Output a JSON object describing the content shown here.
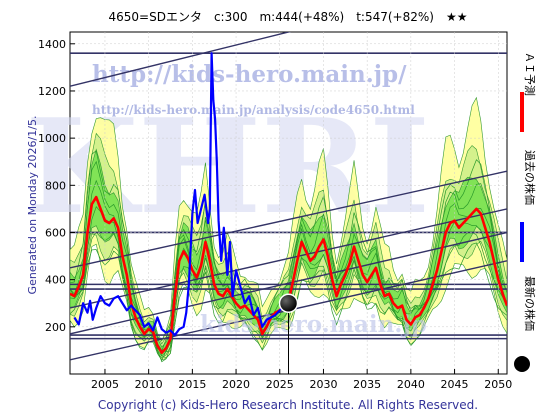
{
  "header": {
    "title": "4650=SDエンタ　c:300　m:444(+48%)　t:547(+82%)　★★"
  },
  "side_text": "Generated on Monday 2026/1/5.",
  "footer": "Copyright (c) Kids-Hero Research Institute. All Rights Reserved.",
  "watermarks": {
    "url_top": "http://kids-hero.main.jp/",
    "url_analysis": "http://kids-hero.main.jp/analysis/code4650.html",
    "big": "KHRI",
    "mid": "kids-hero.main.jp"
  },
  "legend": [
    {
      "label": "ＡＩ予測",
      "color": "#ff0000"
    },
    {
      "label": "過去の株価",
      "color": "#0000ff"
    },
    {
      "label": "最新の株価",
      "color": "#000000"
    }
  ],
  "colors": {
    "prediction": "#ff0000",
    "price": "#0000ff",
    "band_light": "#ffff99",
    "band_green": "#66dd44",
    "channel": "#333366"
  },
  "chart_data": {
    "type": "line",
    "xlim": [
      2001.0,
      2051.0
    ],
    "ylim": [
      0,
      1450
    ],
    "x_ticks": [
      2005,
      2010,
      2015,
      2020,
      2025,
      2030,
      2035,
      2040,
      2045,
      2050
    ],
    "y_ticks": [
      200,
      400,
      600,
      800,
      1000,
      1200,
      1400
    ],
    "horizontal_lines": [
      1360,
      600,
      380,
      360,
      165,
      150
    ],
    "channel_lines": [
      {
        "x": [
          2001,
          2051
        ],
        "y": [
          1220,
          1680
        ]
      },
      {
        "x": [
          2001,
          2051
        ],
        "y": [
          450,
          860
        ]
      },
      {
        "x": [
          2001,
          2051
        ],
        "y": [
          280,
          700
        ]
      },
      {
        "x": [
          2001,
          2051
        ],
        "y": [
          170,
          600
        ]
      },
      {
        "x": [
          2001,
          2051
        ],
        "y": [
          60,
          480
        ]
      }
    ],
    "latest": {
      "x": 2026.0,
      "y": 300
    },
    "series": [
      {
        "name": "過去の株価",
        "x": [
          2001.5,
          2002.0,
          2002.5,
          2003.0,
          2003.3,
          2003.6,
          2004.0,
          2004.5,
          2005.0,
          2005.5,
          2006.0,
          2006.5,
          2007.0,
          2007.5,
          2008.0,
          2008.5,
          2009.0,
          2009.5,
          2010.0,
          2010.5,
          2011.0,
          2011.5,
          2012.0,
          2012.5,
          2013.0,
          2013.5,
          2014.0,
          2014.3,
          2014.6,
          2015.0,
          2015.3,
          2015.6,
          2016.0,
          2016.4,
          2016.8,
          2017.0,
          2017.2,
          2017.4,
          2017.6,
          2017.8,
          2018.0,
          2018.3,
          2018.6,
          2019.0,
          2019.3,
          2019.6,
          2020.0,
          2020.5,
          2021.0,
          2021.5,
          2022.0,
          2022.5,
          2023.0,
          2023.5,
          2024.0,
          2024.5,
          2025.0,
          2025.5,
          2026.0
        ],
        "y": [
          240,
          210,
          300,
          260,
          310,
          230,
          280,
          330,
          300,
          290,
          320,
          330,
          300,
          270,
          290,
          270,
          250,
          200,
          215,
          185,
          240,
          190,
          175,
          185,
          165,
          190,
          200,
          260,
          380,
          680,
          780,
          640,
          700,
          760,
          640,
          700,
          1360,
          1160,
          1080,
          900,
          650,
          480,
          620,
          420,
          560,
          330,
          440,
          370,
          300,
          330,
          250,
          280,
          200,
          230,
          240,
          250,
          270,
          285,
          300
        ]
      },
      {
        "name": "ＡＩ予測",
        "x": [
          2001.0,
          2001.5,
          2002.0,
          2002.5,
          2003.0,
          2003.5,
          2004.0,
          2004.5,
          2005.0,
          2005.5,
          2006.0,
          2006.5,
          2007.0,
          2007.5,
          2008.0,
          2008.5,
          2009.0,
          2009.5,
          2010.0,
          2010.5,
          2011.0,
          2011.5,
          2012.0,
          2012.5,
          2013.0,
          2013.5,
          2014.0,
          2014.5,
          2015.0,
          2015.5,
          2016.0,
          2016.5,
          2017.0,
          2017.5,
          2018.0,
          2018.5,
          2019.0,
          2019.5,
          2020.0,
          2020.5,
          2021.0,
          2021.5,
          2022.0,
          2022.5,
          2023.0,
          2023.5,
          2024.0,
          2024.5,
          2025.0,
          2025.5,
          2026.0,
          2026.5,
          2027.0,
          2027.5,
          2028.0,
          2028.5,
          2029.0,
          2029.5,
          2030.0,
          2030.5,
          2031.0,
          2031.5,
          2032.0,
          2032.5,
          2033.0,
          2033.5,
          2034.0,
          2034.5,
          2035.0,
          2035.5,
          2036.0,
          2036.5,
          2037.0,
          2037.5,
          2038.0,
          2038.5,
          2039.0,
          2039.5,
          2040.0,
          2040.5,
          2041.0,
          2041.5,
          2042.0,
          2042.5,
          2043.0,
          2043.5,
          2044.0,
          2044.5,
          2045.0,
          2045.5,
          2046.0,
          2046.5,
          2047.0,
          2047.5,
          2048.0,
          2048.5,
          2049.0,
          2049.5,
          2050.0,
          2050.5,
          2051.0
        ],
        "y": [
          340,
          330,
          370,
          420,
          600,
          720,
          750,
          700,
          650,
          640,
          660,
          620,
          500,
          420,
          300,
          240,
          200,
          170,
          190,
          180,
          120,
          90,
          110,
          150,
          330,
          480,
          520,
          490,
          440,
          410,
          460,
          560,
          480,
          380,
          340,
          330,
          360,
          330,
          300,
          280,
          290,
          270,
          250,
          230,
          170,
          200,
          240,
          260,
          270,
          290,
          310,
          390,
          480,
          560,
          520,
          480,
          500,
          540,
          570,
          500,
          400,
          330,
          380,
          420,
          470,
          540,
          480,
          420,
          390,
          420,
          450,
          380,
          330,
          340,
          300,
          280,
          290,
          230,
          210,
          240,
          250,
          280,
          320,
          380,
          440,
          520,
          600,
          640,
          650,
          620,
          640,
          660,
          680,
          700,
          680,
          620,
          560,
          480,
          400,
          340,
          290
        ]
      }
    ]
  }
}
